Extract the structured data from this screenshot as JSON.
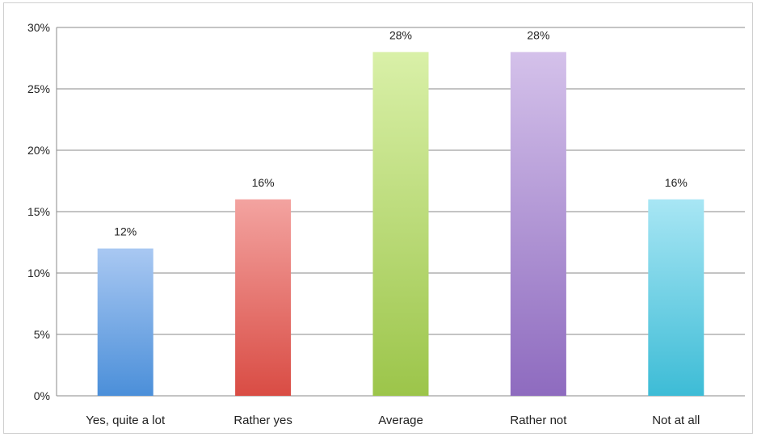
{
  "chart_data": {
    "type": "bar",
    "categories": [
      "Yes, quite a lot",
      "Rather yes",
      "Average",
      "Rather not",
      "Not at all"
    ],
    "values": [
      12,
      16,
      28,
      28,
      16
    ],
    "data_labels": [
      "12%",
      "16%",
      "28%",
      "28%",
      "16%"
    ],
    "y_ticks": [
      "0%",
      "5%",
      "10%",
      "15%",
      "20%",
      "25%",
      "30%"
    ],
    "ylim": [
      0,
      30
    ],
    "y_tick_step": 5,
    "grid": true,
    "legend": "none",
    "colors": {
      "top": [
        "#a9c8f2",
        "#f3a3a0",
        "#d9f0a8",
        "#d4c1ea",
        "#a8e6f4"
      ],
      "bottom": [
        "#4b8fd9",
        "#d94c44",
        "#9cc54a",
        "#8e6bbf",
        "#3dbcd6"
      ]
    }
  }
}
